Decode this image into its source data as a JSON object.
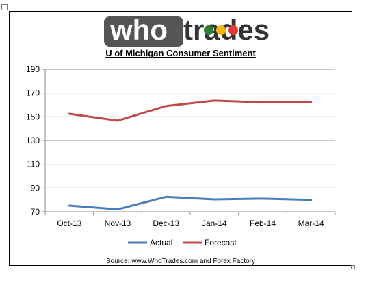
{
  "logo": {
    "text_who": "who",
    "text_trades": "trades",
    "who_color": "#ffffff",
    "who_bg": "#555555",
    "trades_color": "#333333",
    "dot_colors": [
      "#2e7d32",
      "#f2b70f",
      "#e53935"
    ]
  },
  "chart_data": {
    "type": "line",
    "title": "U of Michigan Consumer Sentiment",
    "categories": [
      "Oct-13",
      "Nov-13",
      "Dec-13",
      "Jan-14",
      "Feb-14",
      "Mar-14"
    ],
    "series": [
      {
        "name": "Actual",
        "color": "#4a7ebb",
        "values": [
          75.2,
          72.0,
          82.5,
          80.4,
          81.0,
          79.9
        ]
      },
      {
        "name": "Forecast",
        "color": "#be4b48",
        "values": [
          152.5,
          146.8,
          159.0,
          163.5,
          162.0,
          162.0
        ]
      }
    ],
    "yticks": [
      70,
      90,
      110,
      130,
      150,
      170,
      190
    ],
    "ylim": [
      70,
      190
    ],
    "grid": true,
    "legend_position": "bottom"
  },
  "source_note": "Source: www.WhoTrades.com and Forex Factory"
}
